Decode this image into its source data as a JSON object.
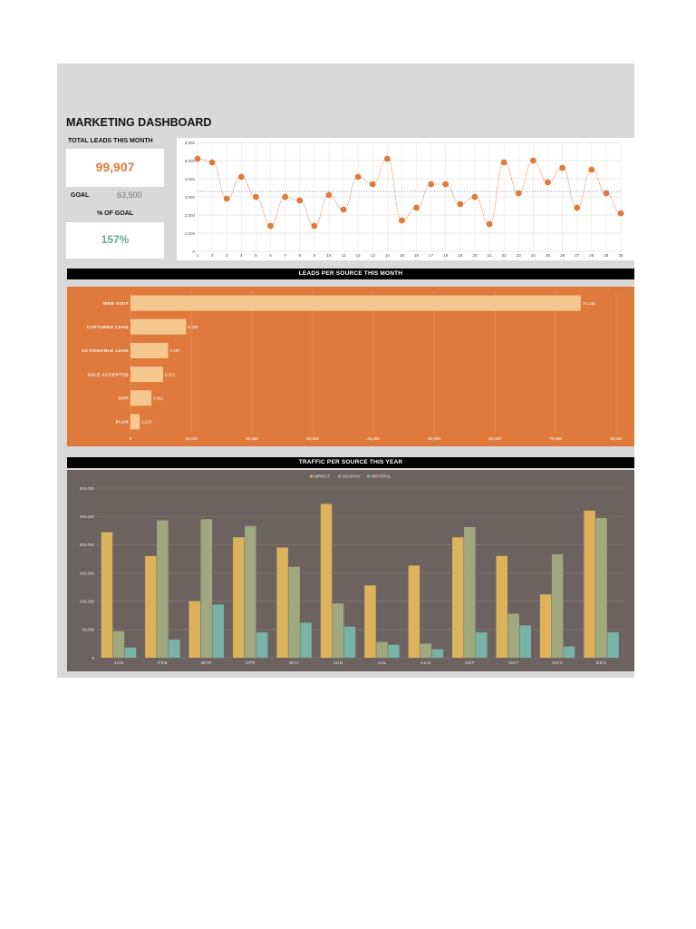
{
  "dashboard": {
    "title": "MARKETING DASHBOARD",
    "total_leads_label": "TOTAL LEADS THIS MONTH",
    "total_leads_value": "99,907",
    "goal_label": "GOAL",
    "goal_value": "63,500",
    "pct_label": "% OF GOAL",
    "pct_value": "157%"
  },
  "colors": {
    "orange": "#e07a3c",
    "bar_light": "#f6c88e",
    "direct": "#dcb35c",
    "search": "#9fa87e",
    "referal": "#77b3a6",
    "dark_panel": "#6c6260"
  },
  "sections": {
    "leads_band": "LEADS PER SOURCE THIS MONTH",
    "traffic_band": "TRAFFIC PER SOURCE THIS YEAR"
  },
  "chart_data": [
    {
      "type": "line",
      "x": [
        1,
        2,
        3,
        4,
        5,
        6,
        7,
        8,
        9,
        10,
        11,
        12,
        13,
        14,
        15,
        16,
        17,
        18,
        19,
        20,
        21,
        22,
        23,
        24,
        25,
        26,
        27,
        28,
        29,
        30
      ],
      "series": [
        {
          "values": [
            5100,
            4900,
            2900,
            4100,
            3000,
            1400,
            3000,
            2800,
            1400,
            3100,
            2300,
            4100,
            3700,
            5100,
            1700,
            2400,
            3700,
            3700,
            2600,
            3000,
            1500,
            4900,
            3200,
            5000,
            3800,
            4600,
            2400,
            4500,
            3200,
            2100
          ]
        }
      ],
      "y_ticks": [
        "0",
        "1,000",
        "2,000",
        "3,000",
        "4,000",
        "5,000",
        "6,000"
      ],
      "ylim": [
        0,
        6000
      ],
      "average_line": 3300,
      "grid": true
    },
    {
      "type": "bar",
      "orientation": "horizontal",
      "categories": [
        "WEB VISIT",
        "CAPTURED LEAD",
        "ACTIONABLE LEAD",
        "SALE ACCEPTED",
        "OPP",
        "PLUS"
      ],
      "values": [
        74148,
        9155,
        6187,
        5372,
        3451,
        1510
      ],
      "value_labels": [
        "74,148",
        "9,155",
        "6,187",
        "5,372",
        "3,451",
        "1,510"
      ],
      "x_ticks": [
        "0",
        "10,000",
        "20,000",
        "30,000",
        "40,000",
        "50,000",
        "60,000",
        "70,000",
        "80,000"
      ],
      "xlim": [
        0,
        80000
      ]
    },
    {
      "type": "bar",
      "categories": [
        "JAN",
        "FEB",
        "MAR",
        "APR",
        "MAY",
        "JUN",
        "JUL",
        "AUG",
        "SEP",
        "OCT",
        "NOV",
        "DEC"
      ],
      "series": [
        {
          "name": "DIRECT",
          "values": [
            222000,
            180000,
            100000,
            213000,
            195000,
            272000,
            128000,
            163000,
            213000,
            180000,
            112000,
            260000
          ]
        },
        {
          "name": "SEARCH",
          "values": [
            47000,
            243000,
            245000,
            233000,
            161000,
            96000,
            28000,
            25000,
            231000,
            78000,
            183000,
            247000
          ]
        },
        {
          "name": "REFERAL",
          "values": [
            18000,
            32000,
            94000,
            45000,
            62000,
            55000,
            23000,
            15000,
            45000,
            57000,
            20000,
            45000
          ]
        }
      ],
      "y_ticks": [
        "0",
        "50,000",
        "100,000",
        "150,000",
        "200,000",
        "250,000",
        "300,000"
      ],
      "ylim": [
        0,
        300000
      ],
      "legend": "top-center"
    }
  ]
}
